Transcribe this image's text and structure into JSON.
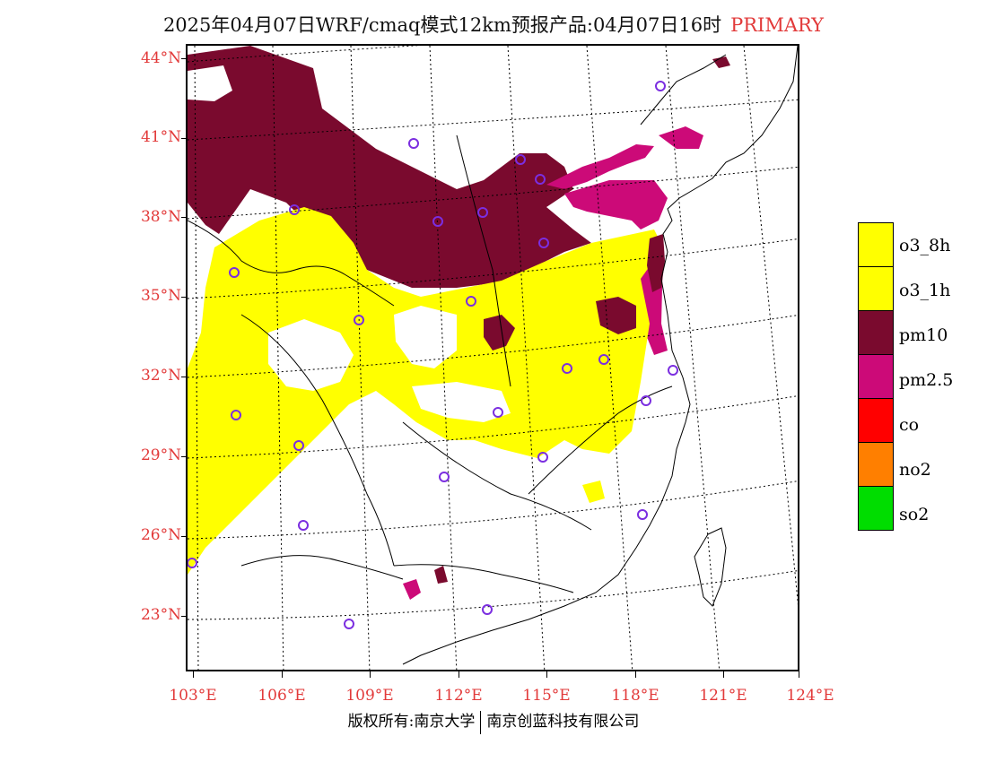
{
  "title": {
    "main": "2025年04月07日WRF/cmaq模式12km预报产品:04月07日16时",
    "tag": "PRIMARY"
  },
  "axes": {
    "lat_labels": [
      "44°N",
      "41°N",
      "38°N",
      "35°N",
      "32°N",
      "29°N",
      "26°N",
      "23°N"
    ],
    "lon_labels": [
      "103°E",
      "106°E",
      "109°E",
      "112°E",
      "115°E",
      "118°E",
      "121°E",
      "124°E"
    ]
  },
  "legend": {
    "items": [
      {
        "label": "o3_8h",
        "color": "#ffff00"
      },
      {
        "label": "o3_1h",
        "color": "#ffff00"
      },
      {
        "label": "pm10",
        "color": "#7a0a2e"
      },
      {
        "label": "pm2.5",
        "color": "#cc0a78"
      },
      {
        "label": "co",
        "color": "#ff0000"
      },
      {
        "label": "no2",
        "color": "#ff7f00"
      },
      {
        "label": "so2",
        "color": "#00dd00"
      }
    ]
  },
  "footer": {
    "left": "版权所有:南京大学",
    "right": "南京创蓝科技有限公司"
  },
  "colors": {
    "o3": "#ffff00",
    "pm10": "#7a0a2e",
    "pm25": "#cc0a78",
    "station": "#7b2ee0",
    "label": "#e23a3a"
  }
}
